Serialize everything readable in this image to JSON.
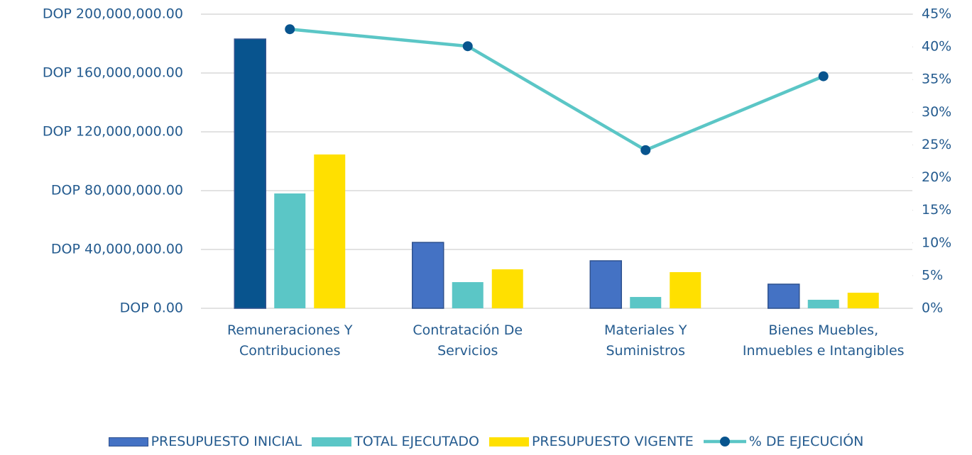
{
  "chart_data": {
    "type": "bar",
    "categories": [
      "Remuneraciones Y Contribuciones",
      "Contratación De Servicios",
      "Materiales Y Suministros",
      "Bienes Muebles, Inmuebles e Intangibles"
    ],
    "series": [
      {
        "name": "PRESUPUESTO INICIAL",
        "type": "bar",
        "color": "#4472c4",
        "border": "#2f528f",
        "point_colors": [
          "#08548e",
          "#4472c4",
          "#4472c4",
          "#4472c4"
        ],
        "values": [
          183100000,
          44800000,
          32300000,
          16400000
        ]
      },
      {
        "name": "TOTAL EJECUTADO",
        "type": "bar",
        "color": "#5bc6c6",
        "values": [
          78100000,
          17800000,
          7700000,
          5800000
        ]
      },
      {
        "name": "PRESUPUESTO VIGENTE",
        "type": "bar",
        "color": "#ffe000",
        "values": [
          104600000,
          26500000,
          24600000,
          10600000
        ]
      },
      {
        "name": "% DE EJECUCIÓN",
        "type": "line",
        "axis": "y2",
        "color": "#5bc6c6",
        "marker_color": "#08548e",
        "values": [
          42.7,
          40.1,
          24.2,
          35.5
        ]
      }
    ],
    "ylim": [
      0,
      200000000
    ],
    "yticks": [
      {
        "value": 0,
        "label": "DOP 0.00"
      },
      {
        "value": 40000000,
        "label": "DOP 40,000,000.00"
      },
      {
        "value": 80000000,
        "label": "DOP 80,000,000.00"
      },
      {
        "value": 120000000,
        "label": "DOP 120,000,000.00"
      },
      {
        "value": 160000000,
        "label": "DOP 160,000,000.00"
      },
      {
        "value": 200000000,
        "label": "DOP 200,000,000.00"
      }
    ],
    "y2lim": [
      0,
      45
    ],
    "y2ticks": [
      {
        "value": 0,
        "label": "0%"
      },
      {
        "value": 5,
        "label": "5%"
      },
      {
        "value": 10,
        "label": "10%"
      },
      {
        "value": 15,
        "label": "15%"
      },
      {
        "value": 20,
        "label": "20%"
      },
      {
        "value": 25,
        "label": "25%"
      },
      {
        "value": 30,
        "label": "30%"
      },
      {
        "value": 35,
        "label": "35%"
      },
      {
        "value": 40,
        "label": "40%"
      },
      {
        "value": 45,
        "label": "45%"
      }
    ],
    "grid": true,
    "legend": "bottom"
  }
}
